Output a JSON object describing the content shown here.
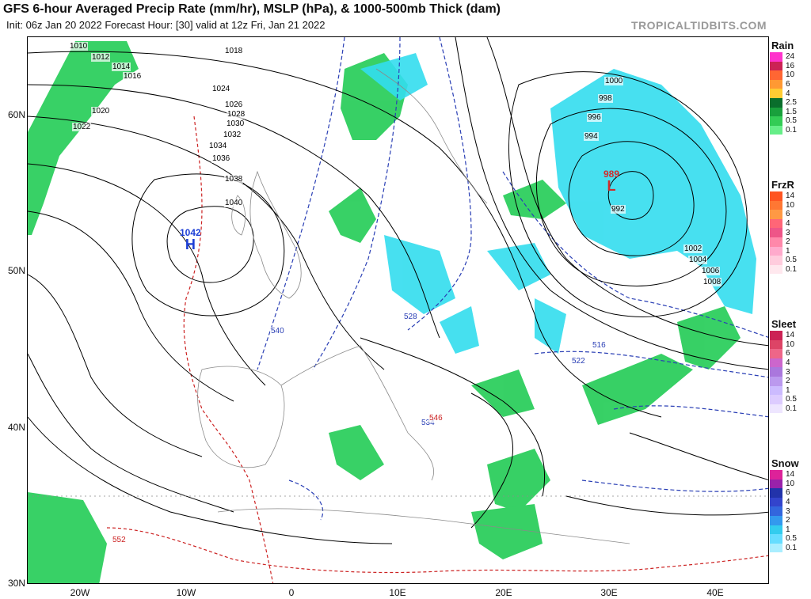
{
  "header": {
    "title": "GFS 6-hour Averaged Precip Rate (mm/hr), MSLP (hPa), & 1000-500mb Thick (dam)",
    "subtitle": "Init: 06z Jan 20 2022   Forecast Hour: [30]   valid at 12z Fri, Jan 21 2022",
    "brand": "TROPICALTIDBITS.COM"
  },
  "axes": {
    "lat_labels": [
      "60N",
      "50N",
      "40N",
      "30N"
    ],
    "lon_labels": [
      "20W",
      "10W",
      "0",
      "10E",
      "20E",
      "30E",
      "40E"
    ]
  },
  "pressure_centers": [
    {
      "type": "H",
      "value": "1042",
      "color": "#1d3fd6"
    },
    {
      "type": "L",
      "value": "989",
      "color": "#d22b2b"
    }
  ],
  "isobar_labels": [
    "1010",
    "1012",
    "1014",
    "1016",
    "1018",
    "1020",
    "1022",
    "1024",
    "1026",
    "1028",
    "1030",
    "1032",
    "1034",
    "1036",
    "1038",
    "1040",
    "1000",
    "998",
    "996",
    "994",
    "992",
    "1002",
    "1004",
    "1006",
    "1008"
  ],
  "thickness_labels": [
    "528",
    "534",
    "540",
    "516",
    "522",
    "546",
    "552"
  ],
  "colors": {
    "isobar": "#000000",
    "thickness_cold": "#2a3fb5",
    "thickness_warm": "#cc2222",
    "rain_green": "#22cc55",
    "snow_cyan": "#33ddee",
    "borders": "#9a9a9a"
  },
  "legends": [
    {
      "title": "Rain",
      "labels": [
        "24",
        "16",
        "10",
        "6",
        "4",
        "2.5",
        "1.5",
        "0.5",
        "0.1"
      ],
      "colors": [
        "#ff33cc",
        "#cc2255",
        "#ff6633",
        "#ff9933",
        "#ffcc33",
        "#0a6e2c",
        "#19a03c",
        "#33cc55",
        "#66ee88"
      ]
    },
    {
      "title": "FrzR",
      "labels": [
        "14",
        "10",
        "6",
        "4",
        "3",
        "2",
        "1",
        "0.5",
        "0.1"
      ],
      "colors": [
        "#ff5522",
        "#ff7733",
        "#ff9944",
        "#ff6677",
        "#ee5588",
        "#ff88aa",
        "#ffaacc",
        "#ffccdd",
        "#ffe8ee"
      ]
    },
    {
      "title": "Sleet",
      "labels": [
        "14",
        "10",
        "6",
        "4",
        "3",
        "2",
        "1",
        "0.5",
        "0.1"
      ],
      "colors": [
        "#cc2255",
        "#dd4466",
        "#ee6688",
        "#cc66cc",
        "#aa77dd",
        "#bb99ee",
        "#ccbbff",
        "#ddccff",
        "#eee6ff"
      ]
    },
    {
      "title": "Snow",
      "labels": [
        "14",
        "10",
        "6",
        "4",
        "3",
        "2",
        "1",
        "0.5",
        "0.1"
      ],
      "colors": [
        "#dd2299",
        "#9922aa",
        "#2233aa",
        "#3344cc",
        "#3366dd",
        "#3399ee",
        "#33ccee",
        "#66ddff",
        "#aaeeff"
      ]
    }
  ]
}
